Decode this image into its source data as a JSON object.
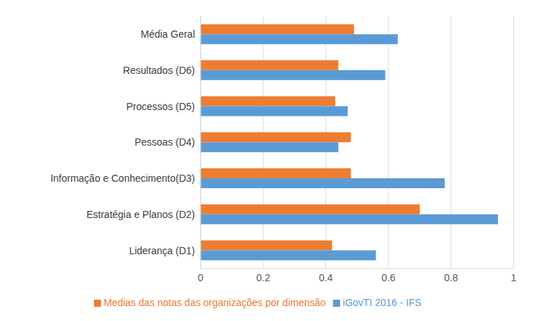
{
  "chart_data": {
    "type": "bar",
    "orientation": "horizontal",
    "categories": [
      "Média Geral",
      "Resultados (D6)",
      "Processos (D5)",
      "Pessoas (D4)",
      "Informação e Conhecimento(D3)",
      "Estratégia e Planos (D2)",
      "Liderança (D1)"
    ],
    "series": [
      {
        "name": "Medias das notas das organizações por dimensão",
        "color": "#ED7D31",
        "values": [
          0.49,
          0.44,
          0.43,
          0.48,
          0.48,
          0.7,
          0.42
        ]
      },
      {
        "name": "iGovTI 2016 - IFS",
        "color": "#5B9BD5",
        "values": [
          0.63,
          0.59,
          0.47,
          0.44,
          0.78,
          0.95,
          0.56
        ]
      }
    ],
    "xlim": [
      0,
      1
    ],
    "xticks": [
      0,
      0.2,
      0.4,
      0.6,
      0.8,
      1
    ],
    "grid": true,
    "legend": "bottom"
  }
}
